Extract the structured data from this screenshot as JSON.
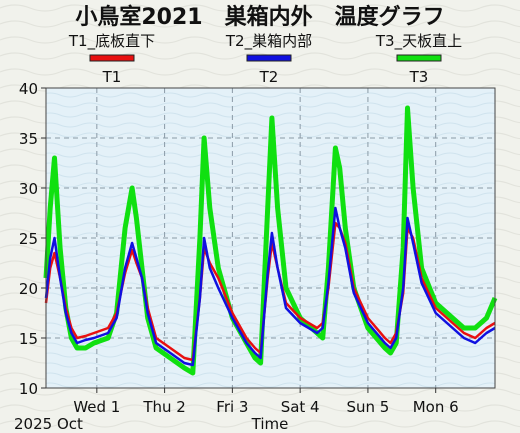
{
  "chart_data": {
    "type": "line",
    "title": "小鳥室2021　巣箱内外　温度グラフ",
    "legend_placement": "top",
    "series_colors": [
      "#e81010",
      "#1010e0",
      "#10e010"
    ],
    "legend": [
      {
        "name": "T1",
        "description": "T1_底板直下",
        "color": "#e81010"
      },
      {
        "name": "T2",
        "description": "T2_巣箱内部",
        "color": "#1010e0"
      },
      {
        "name": "T3",
        "description": "T3_天板直上",
        "color": "#10e010"
      }
    ],
    "xlabel": "Time",
    "x_start_label": "2025 Oct",
    "ylabel": "",
    "ylim": [
      10,
      40
    ],
    "yticks": [
      10,
      15,
      20,
      25,
      30,
      35,
      40
    ],
    "xlim": [
      "2025-09-30T06:00",
      "2025-10-06T21:00"
    ],
    "xticks": [
      {
        "label": "Wed 1",
        "x": "2025-10-01T00:00"
      },
      {
        "label": "Thu 2",
        "x": "2025-10-02T00:00"
      },
      {
        "label": "Fri 3",
        "x": "2025-10-03T00:00"
      },
      {
        "label": "Sat 4",
        "x": "2025-10-04T00:00"
      },
      {
        "label": "Sun 5",
        "x": "2025-10-05T00:00"
      },
      {
        "label": "Mon 6",
        "x": "2025-10-06T00:00"
      }
    ],
    "grid": true,
    "series": [
      {
        "name": "T1",
        "x": [
          "2025-09-30T06:00",
          "2025-09-30T07:30",
          "2025-09-30T09:00",
          "2025-09-30T11:00",
          "2025-09-30T13:00",
          "2025-09-30T15:00",
          "2025-09-30T17:00",
          "2025-09-30T20:00",
          "2025-09-30T23:00",
          "2025-10-01T04:00",
          "2025-10-01T07:00",
          "2025-10-01T10:00",
          "2025-10-01T12:30",
          "2025-10-01T14:00",
          "2025-10-01T16:00",
          "2025-10-01T18:00",
          "2025-10-01T21:00",
          "2025-10-02T02:00",
          "2025-10-02T07:00",
          "2025-10-02T10:00",
          "2025-10-02T12:30",
          "2025-10-02T14:00",
          "2025-10-02T16:00",
          "2025-10-02T19:00",
          "2025-10-03T00:00",
          "2025-10-03T05:00",
          "2025-10-03T08:00",
          "2025-10-03T10:00",
          "2025-10-03T12:30",
          "2025-10-03T14:00",
          "2025-10-03T16:00",
          "2025-10-03T19:00",
          "2025-10-04T00:00",
          "2025-10-04T06:00",
          "2025-10-04T08:00",
          "2025-10-04T10:00",
          "2025-10-04T12:30",
          "2025-10-04T14:00",
          "2025-10-04T16:00",
          "2025-10-04T19:00",
          "2025-10-05T00:00",
          "2025-10-05T06:00",
          "2025-10-05T08:00",
          "2025-10-05T10:00",
          "2025-10-05T12:30",
          "2025-10-05T14:00",
          "2025-10-05T16:00",
          "2025-10-05T19:00",
          "2025-10-06T00:00",
          "2025-10-06T06:00",
          "2025-10-06T10:00",
          "2025-10-06T14:00",
          "2025-10-06T18:00",
          "2025-10-06T21:00"
        ],
        "y": [
          18.5,
          22,
          23.5,
          21,
          18,
          16,
          15,
          15.2,
          15.5,
          16,
          17.5,
          21.5,
          23.8,
          22.5,
          21,
          18,
          15,
          14,
          13,
          12.8,
          19,
          24,
          22.5,
          21,
          17.5,
          15,
          14,
          13.5,
          21,
          24.5,
          22,
          18.5,
          17,
          16,
          16.5,
          20,
          26.5,
          26,
          24.5,
          20,
          17,
          15,
          14.5,
          15.5,
          19.5,
          26,
          25,
          21,
          18,
          16.5,
          15.5,
          15,
          16,
          16.5
        ]
      },
      {
        "name": "T2",
        "x": [
          "2025-09-30T06:00",
          "2025-09-30T07:30",
          "2025-09-30T09:00",
          "2025-09-30T11:00",
          "2025-09-30T13:00",
          "2025-09-30T15:00",
          "2025-09-30T17:00",
          "2025-09-30T20:00",
          "2025-09-30T23:00",
          "2025-10-01T04:00",
          "2025-10-01T07:00",
          "2025-10-01T10:00",
          "2025-10-01T12:30",
          "2025-10-01T14:00",
          "2025-10-01T16:00",
          "2025-10-01T18:00",
          "2025-10-01T21:00",
          "2025-10-02T02:00",
          "2025-10-02T07:00",
          "2025-10-02T10:00",
          "2025-10-02T12:30",
          "2025-10-02T14:00",
          "2025-10-02T16:00",
          "2025-10-02T19:00",
          "2025-10-03T00:00",
          "2025-10-03T05:00",
          "2025-10-03T08:00",
          "2025-10-03T10:00",
          "2025-10-03T12:30",
          "2025-10-03T14:00",
          "2025-10-03T16:00",
          "2025-10-03T19:00",
          "2025-10-04T00:00",
          "2025-10-04T06:00",
          "2025-10-04T08:00",
          "2025-10-04T10:00",
          "2025-10-04T12:30",
          "2025-10-04T14:00",
          "2025-10-04T16:00",
          "2025-10-04T19:00",
          "2025-10-05T00:00",
          "2025-10-05T06:00",
          "2025-10-05T08:00",
          "2025-10-05T10:00",
          "2025-10-05T12:30",
          "2025-10-05T14:00",
          "2025-10-05T16:00",
          "2025-10-05T19:00",
          "2025-10-06T00:00",
          "2025-10-06T06:00",
          "2025-10-06T10:00",
          "2025-10-06T14:00",
          "2025-10-06T18:00",
          "2025-10-06T21:00"
        ],
        "y": [
          19,
          23,
          25,
          21,
          17.5,
          15.5,
          14.5,
          14.8,
          15,
          15.5,
          17,
          22,
          24.5,
          23,
          21,
          17.5,
          14.5,
          13.5,
          12.5,
          12.3,
          19,
          25,
          22,
          20,
          17,
          14.5,
          13.5,
          13,
          21.5,
          25.5,
          22,
          18,
          16.5,
          15.5,
          16,
          20.5,
          28,
          26,
          24,
          19.5,
          16.5,
          14.5,
          14,
          15,
          20,
          27,
          24.5,
          20.5,
          17.5,
          16,
          15,
          14.5,
          15.5,
          16
        ]
      },
      {
        "name": "T3",
        "x": [
          "2025-09-30T06:00",
          "2025-09-30T07:30",
          "2025-09-30T09:00",
          "2025-09-30T11:00",
          "2025-09-30T13:00",
          "2025-09-30T15:00",
          "2025-09-30T17:00",
          "2025-09-30T20:00",
          "2025-09-30T23:00",
          "2025-10-01T04:00",
          "2025-10-01T07:00",
          "2025-10-01T10:00",
          "2025-10-01T12:30",
          "2025-10-01T14:00",
          "2025-10-01T16:00",
          "2025-10-01T18:00",
          "2025-10-01T21:00",
          "2025-10-02T02:00",
          "2025-10-02T07:00",
          "2025-10-02T10:00",
          "2025-10-02T12:30",
          "2025-10-02T14:00",
          "2025-10-02T16:00",
          "2025-10-02T19:00",
          "2025-10-03T00:00",
          "2025-10-03T05:00",
          "2025-10-03T08:00",
          "2025-10-03T10:00",
          "2025-10-03T12:30",
          "2025-10-03T14:00",
          "2025-10-03T16:00",
          "2025-10-03T19:00",
          "2025-10-04T00:00",
          "2025-10-04T06:00",
          "2025-10-04T08:00",
          "2025-10-04T10:00",
          "2025-10-04T12:30",
          "2025-10-04T14:00",
          "2025-10-04T16:00",
          "2025-10-04T19:00",
          "2025-10-05T00:00",
          "2025-10-05T06:00",
          "2025-10-05T08:00",
          "2025-10-05T10:00",
          "2025-10-05T12:30",
          "2025-10-05T14:00",
          "2025-10-05T16:00",
          "2025-10-05T19:00",
          "2025-10-06T00:00",
          "2025-10-06T06:00",
          "2025-10-06T10:00",
          "2025-10-06T14:00",
          "2025-10-06T18:00",
          "2025-10-06T21:00"
        ],
        "y": [
          21,
          28,
          33,
          24,
          18,
          15,
          14,
          14,
          14.5,
          15,
          17.5,
          26,
          30,
          27,
          22,
          17,
          14,
          13,
          12,
          11.5,
          25,
          35,
          28,
          22,
          17,
          14.5,
          13,
          12.5,
          28,
          37,
          28,
          20,
          17,
          15.5,
          15,
          22,
          34,
          32,
          26,
          20,
          16,
          14,
          13.5,
          14.5,
          24,
          38,
          30,
          22,
          18.5,
          17,
          16,
          16,
          17,
          19
        ]
      }
    ]
  }
}
